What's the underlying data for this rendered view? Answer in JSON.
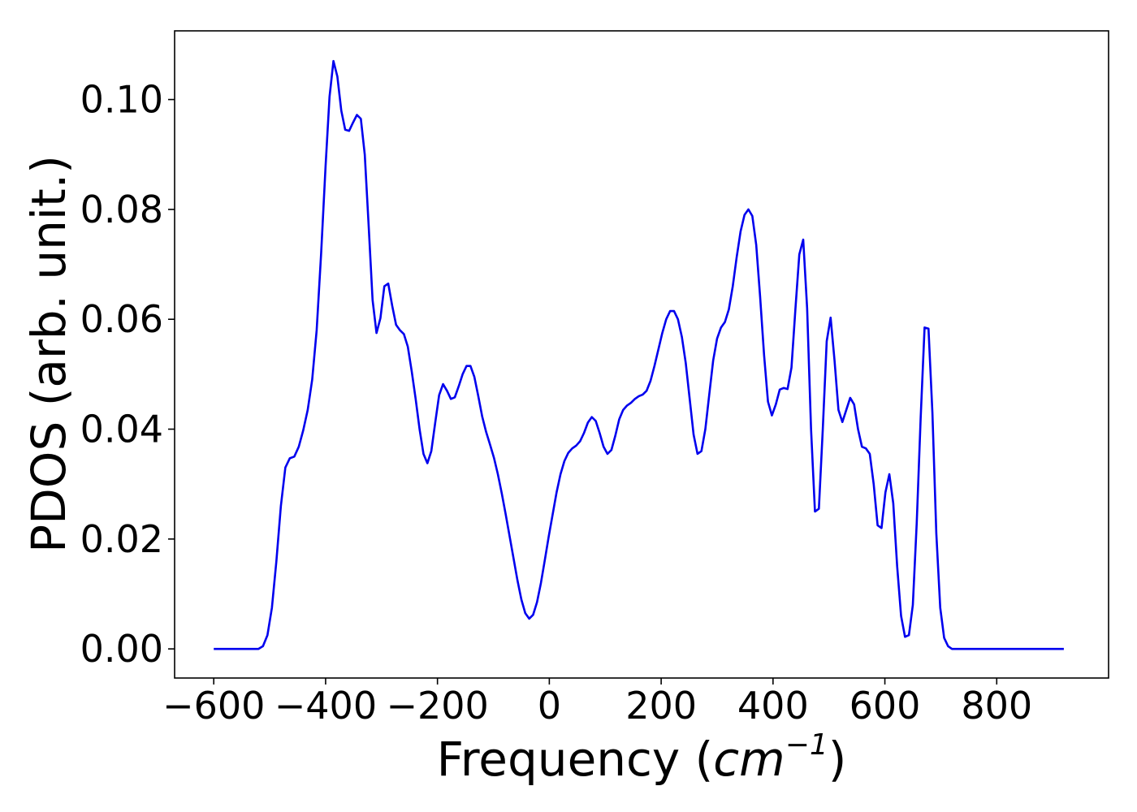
{
  "chart_data": {
    "type": "line",
    "title": "",
    "xlabel": "Frequency (",
    "xlabel_math": "cm",
    "xlabel_sup": "−1",
    "xlabel_close": ")",
    "ylabel": "PDOS (arb. unit.)",
    "xlim": [
      -670,
      1000
    ],
    "ylim": [
      -0.0053,
      0.1125
    ],
    "xticks": [
      -600,
      -400,
      -200,
      0,
      200,
      400,
      600,
      800
    ],
    "xtick_labels": [
      "−600",
      "−400",
      "−200",
      "0",
      "200",
      "400",
      "600",
      "800"
    ],
    "yticks": [
      0.0,
      0.02,
      0.04,
      0.06,
      0.08,
      0.1
    ],
    "ytick_labels": [
      "0.00",
      "0.02",
      "0.04",
      "0.06",
      "0.08",
      "0.10"
    ],
    "grid": false,
    "series": [
      {
        "color": "#0000ee",
        "points": [
          [
            -600,
            0.0
          ],
          [
            -520,
            0.0
          ],
          [
            -512,
            0.0005
          ],
          [
            -504,
            0.0025
          ],
          [
            -496,
            0.0075
          ],
          [
            -488,
            0.016
          ],
          [
            -480,
            0.026
          ],
          [
            -472,
            0.033
          ],
          [
            -464,
            0.0347
          ],
          [
            -456,
            0.035
          ],
          [
            -448,
            0.0368
          ],
          [
            -440,
            0.0398
          ],
          [
            -432,
            0.0435
          ],
          [
            -424,
            0.049
          ],
          [
            -416,
            0.058
          ],
          [
            -408,
            0.072
          ],
          [
            -400,
            0.088
          ],
          [
            -393,
            0.1005
          ],
          [
            -386,
            0.107
          ],
          [
            -379,
            0.1042
          ],
          [
            -372,
            0.098
          ],
          [
            -365,
            0.0945
          ],
          [
            -358,
            0.0943
          ],
          [
            -351,
            0.0958
          ],
          [
            -344,
            0.0972
          ],
          [
            -337,
            0.0965
          ],
          [
            -330,
            0.09
          ],
          [
            -323,
            0.077
          ],
          [
            -316,
            0.0635
          ],
          [
            -309,
            0.0575
          ],
          [
            -302,
            0.0602
          ],
          [
            -295,
            0.066
          ],
          [
            -288,
            0.0665
          ],
          [
            -281,
            0.0625
          ],
          [
            -274,
            0.059
          ],
          [
            -267,
            0.058
          ],
          [
            -260,
            0.0573
          ],
          [
            -253,
            0.055
          ],
          [
            -246,
            0.0505
          ],
          [
            -239,
            0.0455
          ],
          [
            -232,
            0.04
          ],
          [
            -225,
            0.0355
          ],
          [
            -218,
            0.0338
          ],
          [
            -211,
            0.036
          ],
          [
            -204,
            0.0412
          ],
          [
            -197,
            0.0462
          ],
          [
            -190,
            0.0482
          ],
          [
            -183,
            0.047
          ],
          [
            -176,
            0.0455
          ],
          [
            -169,
            0.0458
          ],
          [
            -162,
            0.0478
          ],
          [
            -155,
            0.05
          ],
          [
            -148,
            0.0515
          ],
          [
            -141,
            0.0515
          ],
          [
            -134,
            0.0495
          ],
          [
            -127,
            0.046
          ],
          [
            -120,
            0.0423
          ],
          [
            -113,
            0.0395
          ],
          [
            -106,
            0.0372
          ],
          [
            -99,
            0.0348
          ],
          [
            -92,
            0.0318
          ],
          [
            -85,
            0.0283
          ],
          [
            -78,
            0.0245
          ],
          [
            -71,
            0.0205
          ],
          [
            -64,
            0.0165
          ],
          [
            -57,
            0.0125
          ],
          [
            -50,
            0.009
          ],
          [
            -43,
            0.0065
          ],
          [
            -36,
            0.0055
          ],
          [
            -29,
            0.0062
          ],
          [
            -22,
            0.0085
          ],
          [
            -15,
            0.012
          ],
          [
            -8,
            0.0162
          ],
          [
            -1,
            0.0205
          ],
          [
            6,
            0.0245
          ],
          [
            13,
            0.0285
          ],
          [
            20,
            0.0318
          ],
          [
            27,
            0.0342
          ],
          [
            34,
            0.0357
          ],
          [
            41,
            0.0365
          ],
          [
            48,
            0.037
          ],
          [
            55,
            0.0378
          ],
          [
            62,
            0.0393
          ],
          [
            69,
            0.0412
          ],
          [
            76,
            0.0422
          ],
          [
            83,
            0.0415
          ],
          [
            90,
            0.0393
          ],
          [
            97,
            0.0368
          ],
          [
            104,
            0.0355
          ],
          [
            111,
            0.0362
          ],
          [
            118,
            0.0388
          ],
          [
            125,
            0.0418
          ],
          [
            132,
            0.0435
          ],
          [
            139,
            0.0443
          ],
          [
            146,
            0.0448
          ],
          [
            153,
            0.0455
          ],
          [
            160,
            0.046
          ],
          [
            167,
            0.0463
          ],
          [
            174,
            0.047
          ],
          [
            181,
            0.0488
          ],
          [
            188,
            0.0515
          ],
          [
            195,
            0.0545
          ],
          [
            202,
            0.0575
          ],
          [
            209,
            0.06
          ],
          [
            216,
            0.0615
          ],
          [
            223,
            0.0615
          ],
          [
            230,
            0.06
          ],
          [
            237,
            0.0568
          ],
          [
            244,
            0.052
          ],
          [
            251,
            0.0455
          ],
          [
            258,
            0.039
          ],
          [
            265,
            0.0355
          ],
          [
            272,
            0.036
          ],
          [
            279,
            0.04
          ],
          [
            286,
            0.0463
          ],
          [
            293,
            0.0525
          ],
          [
            300,
            0.0565
          ],
          [
            307,
            0.0585
          ],
          [
            314,
            0.0595
          ],
          [
            321,
            0.0618
          ],
          [
            328,
            0.066
          ],
          [
            335,
            0.0713
          ],
          [
            342,
            0.076
          ],
          [
            349,
            0.079
          ],
          [
            356,
            0.08
          ],
          [
            363,
            0.0788
          ],
          [
            370,
            0.0735
          ],
          [
            377,
            0.064
          ],
          [
            384,
            0.0535
          ],
          [
            391,
            0.045
          ],
          [
            398,
            0.0425
          ],
          [
            405,
            0.0445
          ],
          [
            412,
            0.0472
          ],
          [
            419,
            0.0475
          ],
          [
            426,
            0.0473
          ],
          [
            433,
            0.0512
          ],
          [
            440,
            0.0618
          ],
          [
            447,
            0.0718
          ],
          [
            454,
            0.0745
          ],
          [
            461,
            0.062
          ],
          [
            468,
            0.04
          ],
          [
            475,
            0.025
          ],
          [
            482,
            0.0255
          ],
          [
            489,
            0.04
          ],
          [
            496,
            0.056
          ],
          [
            503,
            0.0603
          ],
          [
            510,
            0.0525
          ],
          [
            517,
            0.0435
          ],
          [
            524,
            0.0413
          ],
          [
            531,
            0.0435
          ],
          [
            538,
            0.0457
          ],
          [
            545,
            0.0445
          ],
          [
            552,
            0.04
          ],
          [
            559,
            0.0368
          ],
          [
            566,
            0.0365
          ],
          [
            573,
            0.0355
          ],
          [
            580,
            0.03
          ],
          [
            587,
            0.0225
          ],
          [
            594,
            0.022
          ],
          [
            601,
            0.0285
          ],
          [
            608,
            0.0318
          ],
          [
            615,
            0.0265
          ],
          [
            622,
            0.015
          ],
          [
            629,
            0.006
          ],
          [
            636,
            0.0022
          ],
          [
            643,
            0.0025
          ],
          [
            650,
            0.008
          ],
          [
            657,
            0.023
          ],
          [
            664,
            0.042
          ],
          [
            671,
            0.0585
          ],
          [
            678,
            0.0583
          ],
          [
            685,
            0.043
          ],
          [
            692,
            0.021
          ],
          [
            699,
            0.0075
          ],
          [
            706,
            0.002
          ],
          [
            713,
            0.0005
          ],
          [
            720,
            0.0
          ],
          [
            780,
            0.0
          ],
          [
            920,
            0.0
          ]
        ]
      }
    ]
  }
}
